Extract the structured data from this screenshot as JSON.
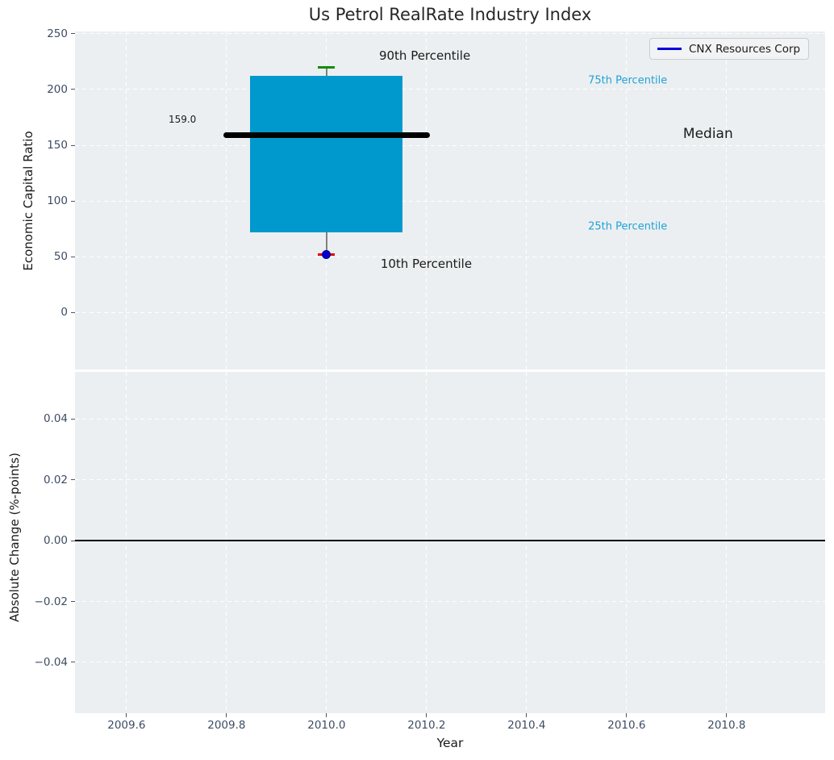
{
  "figure": {
    "title": "Us Petrol RealRate Industry Index"
  },
  "legend": {
    "label": "CNX Resources Corp"
  },
  "colors": {
    "background": "#ffffff",
    "axes_bg": "#eceff1",
    "grid": "rgba(255,255,255,0.95)",
    "tick_label": "#3d4c63",
    "tick_mark": "#4a5568",
    "title": "#262626",
    "box_fill": "#0099cd",
    "median_line": "#000000",
    "whisker": "#808080",
    "cap_high": "#0a8f0a",
    "cap_low": "#e00000",
    "marker": "#0000cd",
    "marker_edge": "#00008b",
    "legend_line": "#0000dd",
    "legend_bg": "#f2f3f5",
    "legend_border": "#c9cdd2",
    "cyan_label": "#1fa3d8",
    "annotation": "#1a1a1a",
    "zero_line": "#000000"
  },
  "chart_data": [
    {
      "type": "boxplot",
      "title": "Us Petrol RealRate Industry Index",
      "ylabel": "Economic Capital Ratio",
      "xlabel": "",
      "grid": true,
      "legend_position": "upper right",
      "xlim": [
        2009.497,
        2010.997
      ],
      "ylim": [
        -51,
        252
      ],
      "yticks": [
        {
          "v": 0,
          "label": "0"
        },
        {
          "v": 50,
          "label": "50"
        },
        {
          "v": 100,
          "label": "100"
        },
        {
          "v": 150,
          "label": "150"
        },
        {
          "v": 200,
          "label": "200"
        },
        {
          "v": 250,
          "label": "250"
        }
      ],
      "xticks": [
        {
          "v": 2009.6,
          "label": ""
        },
        {
          "v": 2009.8,
          "label": ""
        },
        {
          "v": 2010.0,
          "label": ""
        },
        {
          "v": 2010.2,
          "label": ""
        },
        {
          "v": 2010.4,
          "label": ""
        },
        {
          "v": 2010.6,
          "label": ""
        },
        {
          "v": 2010.8,
          "label": ""
        }
      ],
      "boxes": [
        {
          "x": 2010.0,
          "p10": 52,
          "p25": 72,
          "median": 159.0,
          "p75": 212,
          "p90": 220,
          "box_halfwidth": 0.1525,
          "median_halfwidth": 0.2065,
          "cap_halfwidth": 0.017
        }
      ],
      "points": [
        {
          "series": "CNX Resources Corp",
          "x": 2010.0,
          "y": 52
        }
      ],
      "annotations": [
        {
          "text": "90th Percentile",
          "x": 2010.105,
          "y": 230,
          "color_key": "annotation",
          "size": 15
        },
        {
          "text": "10th Percentile",
          "x": 2010.108,
          "y": 44,
          "color_key": "annotation",
          "size": 15
        },
        {
          "text": "75th Percentile",
          "x": 2010.523,
          "y": 208,
          "color_key": "cyan_label",
          "size": 13
        },
        {
          "text": "25th Percentile",
          "x": 2010.523,
          "y": 77,
          "color_key": "cyan_label",
          "size": 13
        },
        {
          "text": "Median",
          "x": 2010.713,
          "y": 160,
          "color_key": "annotation",
          "size": 17
        },
        {
          "text": "159.0",
          "x": 2009.684,
          "y": 173,
          "color_key": "annotation",
          "size": 12
        }
      ]
    },
    {
      "type": "line",
      "title": "",
      "ylabel": "Absolute Change (%-points)",
      "xlabel": "Year",
      "grid": true,
      "xlim": [
        2009.497,
        2010.997
      ],
      "ylim": [
        -0.0567,
        0.0554
      ],
      "zero_line": 0,
      "yticks": [
        {
          "v": 0.04,
          "label": "0.04"
        },
        {
          "v": 0.02,
          "label": "0.02"
        },
        {
          "v": 0.0,
          "label": "0.00"
        },
        {
          "v": -0.02,
          "label": "−0.02"
        },
        {
          "v": -0.04,
          "label": "−0.04"
        }
      ],
      "xticks": [
        {
          "v": 2009.6,
          "label": "2009.6"
        },
        {
          "v": 2009.8,
          "label": "2009.8"
        },
        {
          "v": 2010.0,
          "label": "2010.0"
        },
        {
          "v": 2010.2,
          "label": "2010.2"
        },
        {
          "v": 2010.4,
          "label": "2010.4"
        },
        {
          "v": 2010.6,
          "label": "2010.6"
        },
        {
          "v": 2010.8,
          "label": "2010.8"
        }
      ],
      "series": []
    }
  ]
}
